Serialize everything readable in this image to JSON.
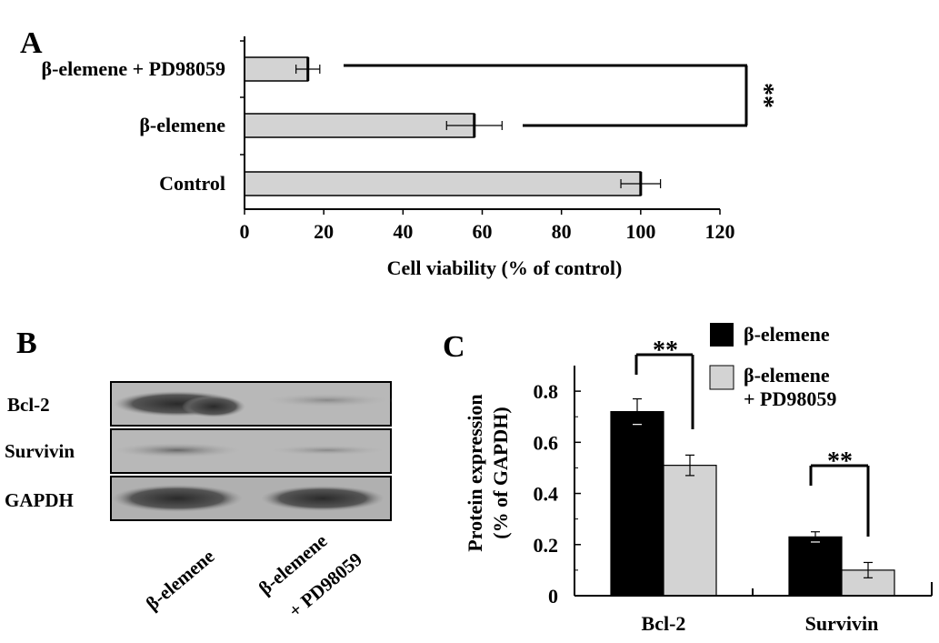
{
  "panels": {
    "A": {
      "letter": "A",
      "chart_data": {
        "type": "bar",
        "orientation": "horizontal",
        "categories": [
          "β-elemene + PD98059",
          "β-elemene",
          "Control"
        ],
        "values": [
          16,
          58,
          100
        ],
        "errors": [
          3,
          7,
          5
        ],
        "xlabel": "Cell viability (% of control)",
        "xlim": [
          0,
          120
        ],
        "xticks": [
          "0",
          "20",
          "40",
          "60",
          "80",
          "100",
          "120"
        ],
        "significance": "**",
        "bar_color": "#d3d3d3"
      }
    },
    "B": {
      "letter": "B",
      "rows": [
        "Bcl-2",
        "Survivin",
        "GAPDH"
      ],
      "lanes": [
        "β-elemene",
        "β-elemene",
        "+ PD98059"
      ]
    },
    "C": {
      "letter": "C",
      "chart_data": {
        "type": "bar",
        "categories": [
          "Bcl-2",
          "Survivin"
        ],
        "series": [
          {
            "name": "β-elemene",
            "values": [
              0.72,
              0.23
            ],
            "errors": [
              0.05,
              0.02
            ],
            "color": "#000000"
          },
          {
            "name": "β-elemene + PD98059",
            "values": [
              0.51,
              0.1
            ],
            "errors": [
              0.04,
              0.03
            ],
            "color": "#d3d3d3"
          }
        ],
        "legend_lines": [
          "β-elemene",
          "β-elemene",
          "+ PD98059"
        ],
        "ylabel_lines": [
          "Protein expression",
          "(% of GAPDH)"
        ],
        "ylim": [
          0,
          0.9
        ],
        "yticks": [
          "0",
          "0.2",
          "0.4",
          "0.6",
          "0.8"
        ],
        "significance": "**",
        "legend_position": "top-right"
      }
    }
  }
}
